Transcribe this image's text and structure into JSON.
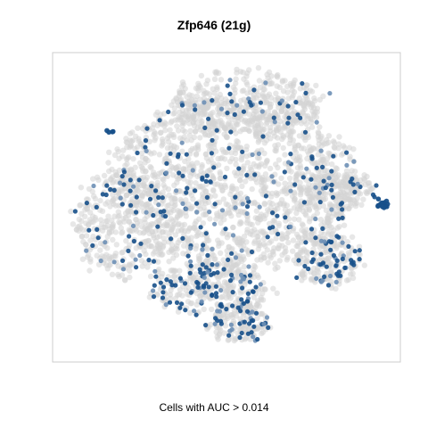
{
  "chart_data": {
    "type": "scatter",
    "title": "Zfp646 (21g)",
    "xlabel": "Cells with AUC > 0.014",
    "ylabel": "",
    "grid": false,
    "legend": "none",
    "colors": {
      "background_cells": "#d3d3d3",
      "high_auc_cells": "#17508a",
      "mid_auc_cells": "#6d8fb5",
      "frame": "#cccccc"
    },
    "note_axes": "no tick labels shown; coordinates are unitless t-SNE style embedding in [0,1]",
    "clusters": [
      {
        "name": "main",
        "cx": 0.52,
        "cy": 0.42,
        "rx": 0.36,
        "ry": 0.28,
        "n_bg": 1500,
        "n_hi": 150
      },
      {
        "name": "upper",
        "cx": 0.56,
        "cy": 0.16,
        "rx": 0.22,
        "ry": 0.1,
        "n_bg": 350,
        "n_hi": 25
      },
      {
        "name": "left",
        "cx": 0.2,
        "cy": 0.55,
        "rx": 0.14,
        "ry": 0.18,
        "n_bg": 300,
        "n_hi": 40
      },
      {
        "name": "bottom-center",
        "cx": 0.45,
        "cy": 0.76,
        "rx": 0.17,
        "ry": 0.09,
        "n_bg": 260,
        "n_hi": 90
      },
      {
        "name": "bottom-lower",
        "cx": 0.54,
        "cy": 0.87,
        "rx": 0.09,
        "ry": 0.06,
        "n_bg": 120,
        "n_hi": 40
      },
      {
        "name": "right-lower",
        "cx": 0.79,
        "cy": 0.67,
        "rx": 0.09,
        "ry": 0.09,
        "n_bg": 160,
        "n_hi": 55
      },
      {
        "name": "right-upper",
        "cx": 0.83,
        "cy": 0.44,
        "rx": 0.1,
        "ry": 0.06,
        "n_bg": 140,
        "n_hi": 18
      }
    ],
    "small_groups": [
      {
        "name": "far-right",
        "cx": 0.95,
        "cy": 0.49,
        "r": 0.012,
        "n_hi": 14
      },
      {
        "name": "upper-left",
        "cx": 0.17,
        "cy": 0.25,
        "r": 0.006,
        "n_hi": 4
      }
    ]
  }
}
